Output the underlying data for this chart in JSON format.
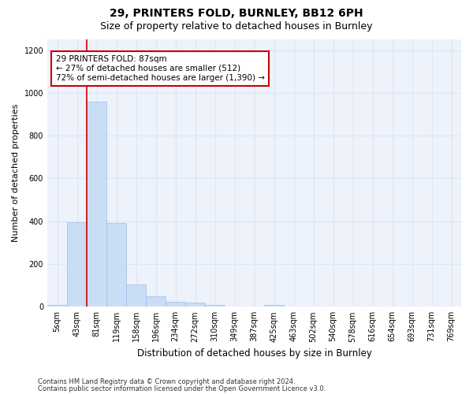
{
  "title1": "29, PRINTERS FOLD, BURNLEY, BB12 6PH",
  "title2": "Size of property relative to detached houses in Burnley",
  "xlabel": "Distribution of detached houses by size in Burnley",
  "ylabel": "Number of detached properties",
  "categories": [
    "5sqm",
    "43sqm",
    "81sqm",
    "119sqm",
    "158sqm",
    "196sqm",
    "234sqm",
    "272sqm",
    "310sqm",
    "349sqm",
    "387sqm",
    "425sqm",
    "463sqm",
    "502sqm",
    "540sqm",
    "578sqm",
    "616sqm",
    "654sqm",
    "693sqm",
    "731sqm",
    "769sqm"
  ],
  "values": [
    10,
    395,
    960,
    390,
    105,
    50,
    25,
    18,
    10,
    0,
    0,
    10,
    0,
    0,
    0,
    0,
    0,
    0,
    0,
    0,
    0
  ],
  "bar_color": "#c9ddf5",
  "bar_edge_color": "#9dbde8",
  "vline_x": 1.5,
  "vline_color": "#cc0000",
  "annotation_text": "29 PRINTERS FOLD: 87sqm\n← 27% of detached houses are smaller (512)\n72% of semi-detached houses are larger (1,390) →",
  "annotation_box_facecolor": "#ffffff",
  "annotation_box_edgecolor": "#cc0000",
  "ylim": [
    0,
    1250
  ],
  "yticks": [
    0,
    200,
    400,
    600,
    800,
    1000,
    1200
  ],
  "grid_color": "#dce6f5",
  "footer1": "Contains HM Land Registry data © Crown copyright and database right 2024.",
  "footer2": "Contains public sector information licensed under the Open Government Licence v3.0.",
  "plot_bg_color": "#edf2fb",
  "title1_fontsize": 10,
  "title2_fontsize": 9,
  "tick_fontsize": 7,
  "ylabel_fontsize": 8,
  "xlabel_fontsize": 8.5,
  "annotation_fontsize": 7.5,
  "footer_fontsize": 6
}
